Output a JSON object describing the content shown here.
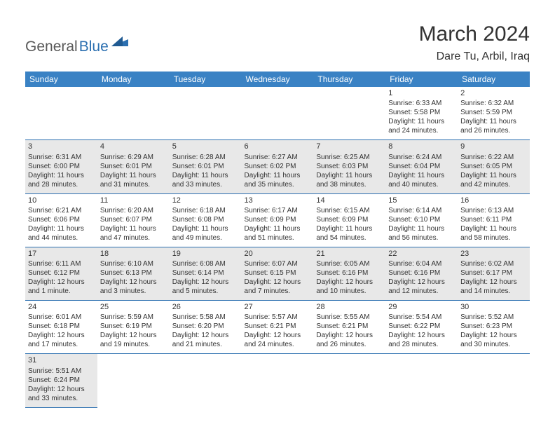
{
  "logo": {
    "text1": "General",
    "text2": "Blue"
  },
  "title": "March 2024",
  "location": "Dare Tu, Arbil, Iraq",
  "colors": {
    "header_bg": "#3a82c4",
    "header_text": "#ffffff",
    "border": "#2b6fb0",
    "shaded": "#e8e8e8",
    "plain": "#ffffff",
    "text": "#333333",
    "logo_gray": "#5a5a5a",
    "logo_blue": "#2b6fb0"
  },
  "weekdays": [
    "Sunday",
    "Monday",
    "Tuesday",
    "Wednesday",
    "Thursday",
    "Friday",
    "Saturday"
  ],
  "weeks": [
    [
      null,
      null,
      null,
      null,
      null,
      {
        "n": "1",
        "sr": "6:33 AM",
        "ss": "5:58 PM",
        "dl": "11 hours and 24 minutes."
      },
      {
        "n": "2",
        "sr": "6:32 AM",
        "ss": "5:59 PM",
        "dl": "11 hours and 26 minutes."
      }
    ],
    [
      {
        "n": "3",
        "sr": "6:31 AM",
        "ss": "6:00 PM",
        "dl": "11 hours and 28 minutes."
      },
      {
        "n": "4",
        "sr": "6:29 AM",
        "ss": "6:01 PM",
        "dl": "11 hours and 31 minutes."
      },
      {
        "n": "5",
        "sr": "6:28 AM",
        "ss": "6:01 PM",
        "dl": "11 hours and 33 minutes."
      },
      {
        "n": "6",
        "sr": "6:27 AM",
        "ss": "6:02 PM",
        "dl": "11 hours and 35 minutes."
      },
      {
        "n": "7",
        "sr": "6:25 AM",
        "ss": "6:03 PM",
        "dl": "11 hours and 38 minutes."
      },
      {
        "n": "8",
        "sr": "6:24 AM",
        "ss": "6:04 PM",
        "dl": "11 hours and 40 minutes."
      },
      {
        "n": "9",
        "sr": "6:22 AM",
        "ss": "6:05 PM",
        "dl": "11 hours and 42 minutes."
      }
    ],
    [
      {
        "n": "10",
        "sr": "6:21 AM",
        "ss": "6:06 PM",
        "dl": "11 hours and 44 minutes."
      },
      {
        "n": "11",
        "sr": "6:20 AM",
        "ss": "6:07 PM",
        "dl": "11 hours and 47 minutes."
      },
      {
        "n": "12",
        "sr": "6:18 AM",
        "ss": "6:08 PM",
        "dl": "11 hours and 49 minutes."
      },
      {
        "n": "13",
        "sr": "6:17 AM",
        "ss": "6:09 PM",
        "dl": "11 hours and 51 minutes."
      },
      {
        "n": "14",
        "sr": "6:15 AM",
        "ss": "6:09 PM",
        "dl": "11 hours and 54 minutes."
      },
      {
        "n": "15",
        "sr": "6:14 AM",
        "ss": "6:10 PM",
        "dl": "11 hours and 56 minutes."
      },
      {
        "n": "16",
        "sr": "6:13 AM",
        "ss": "6:11 PM",
        "dl": "11 hours and 58 minutes."
      }
    ],
    [
      {
        "n": "17",
        "sr": "6:11 AM",
        "ss": "6:12 PM",
        "dl": "12 hours and 1 minute."
      },
      {
        "n": "18",
        "sr": "6:10 AM",
        "ss": "6:13 PM",
        "dl": "12 hours and 3 minutes."
      },
      {
        "n": "19",
        "sr": "6:08 AM",
        "ss": "6:14 PM",
        "dl": "12 hours and 5 minutes."
      },
      {
        "n": "20",
        "sr": "6:07 AM",
        "ss": "6:15 PM",
        "dl": "12 hours and 7 minutes."
      },
      {
        "n": "21",
        "sr": "6:05 AM",
        "ss": "6:16 PM",
        "dl": "12 hours and 10 minutes."
      },
      {
        "n": "22",
        "sr": "6:04 AM",
        "ss": "6:16 PM",
        "dl": "12 hours and 12 minutes."
      },
      {
        "n": "23",
        "sr": "6:02 AM",
        "ss": "6:17 PM",
        "dl": "12 hours and 14 minutes."
      }
    ],
    [
      {
        "n": "24",
        "sr": "6:01 AM",
        "ss": "6:18 PM",
        "dl": "12 hours and 17 minutes."
      },
      {
        "n": "25",
        "sr": "5:59 AM",
        "ss": "6:19 PM",
        "dl": "12 hours and 19 minutes."
      },
      {
        "n": "26",
        "sr": "5:58 AM",
        "ss": "6:20 PM",
        "dl": "12 hours and 21 minutes."
      },
      {
        "n": "27",
        "sr": "5:57 AM",
        "ss": "6:21 PM",
        "dl": "12 hours and 24 minutes."
      },
      {
        "n": "28",
        "sr": "5:55 AM",
        "ss": "6:21 PM",
        "dl": "12 hours and 26 minutes."
      },
      {
        "n": "29",
        "sr": "5:54 AM",
        "ss": "6:22 PM",
        "dl": "12 hours and 28 minutes."
      },
      {
        "n": "30",
        "sr": "5:52 AM",
        "ss": "6:23 PM",
        "dl": "12 hours and 30 minutes."
      }
    ],
    [
      {
        "n": "31",
        "sr": "5:51 AM",
        "ss": "6:24 PM",
        "dl": "12 hours and 33 minutes."
      },
      null,
      null,
      null,
      null,
      null,
      null
    ]
  ]
}
